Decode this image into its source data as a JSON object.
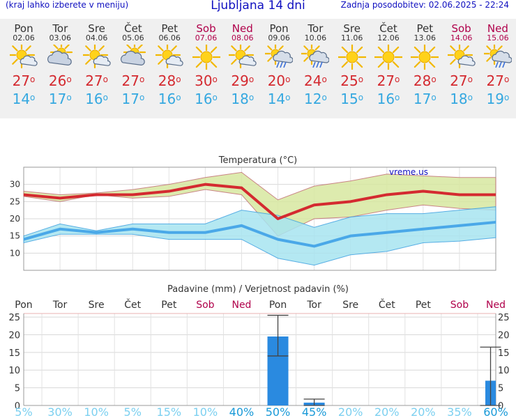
{
  "header": {
    "menu_hint": "(kraj lahko izberete v meniju)",
    "title": "Ljubljana 14 dni",
    "updated": "Zadnja posodobitev: 02.06.2025 - 22:24"
  },
  "days": [
    {
      "name": "Pon",
      "date": "02.06",
      "weekend": false,
      "icon": "sun-cloud-icon",
      "tmax": "27",
      "tmin": "14"
    },
    {
      "name": "Tor",
      "date": "03.06",
      "weekend": false,
      "icon": "cloudy-sun-icon",
      "tmax": "26",
      "tmin": "17"
    },
    {
      "name": "Sre",
      "date": "04.06",
      "weekend": false,
      "icon": "sun-cloud-icon",
      "tmax": "27",
      "tmin": "16"
    },
    {
      "name": "Čet",
      "date": "05.06",
      "weekend": false,
      "icon": "cloudy-sun-icon",
      "tmax": "27",
      "tmin": "17"
    },
    {
      "name": "Pet",
      "date": "06.06",
      "weekend": false,
      "icon": "sun-cloud-icon",
      "tmax": "28",
      "tmin": "16"
    },
    {
      "name": "Sob",
      "date": "07.06",
      "weekend": true,
      "icon": "sun-icon",
      "tmax": "30",
      "tmin": "16"
    },
    {
      "name": "Ned",
      "date": "08.06",
      "weekend": true,
      "icon": "sun-cloud-icon",
      "tmax": "29",
      "tmin": "18"
    },
    {
      "name": "Pon",
      "date": "09.06",
      "weekend": false,
      "icon": "sun-cloud-rain-icon",
      "tmax": "20",
      "tmin": "14"
    },
    {
      "name": "Tor",
      "date": "10.06",
      "weekend": false,
      "icon": "sun-cloud-rain-icon",
      "tmax": "24",
      "tmin": "12"
    },
    {
      "name": "Sre",
      "date": "11.06",
      "weekend": false,
      "icon": "sun-icon",
      "tmax": "25",
      "tmin": "15"
    },
    {
      "name": "Čet",
      "date": "12.06",
      "weekend": false,
      "icon": "sun-icon",
      "tmax": "27",
      "tmin": "16"
    },
    {
      "name": "Pet",
      "date": "13.06",
      "weekend": false,
      "icon": "sun-icon",
      "tmax": "28",
      "tmin": "17"
    },
    {
      "name": "Sob",
      "date": "14.06",
      "weekend": true,
      "icon": "sun-cloud-icon",
      "tmax": "27",
      "tmin": "18"
    },
    {
      "name": "Ned",
      "date": "15.06",
      "weekend": true,
      "icon": "sun-cloud-rain-icon",
      "tmax": "27",
      "tmin": "19"
    }
  ],
  "colors": {
    "weekend": "#b0004a",
    "tmax": "#d42a30",
    "tmin": "#35a8e0",
    "title": "#1010c0",
    "max_band": "#d8e8a0",
    "min_band": "#a8e4f0",
    "precip_bar": "#2a8ae0",
    "prob_low": "#7cd0f0",
    "prob_high": "#1a9ad8"
  },
  "chart_data": [
    {
      "type": "line",
      "title": "Temperatura (°C)",
      "ylim": [
        5,
        35
      ],
      "yticks": [
        "10",
        "15",
        "20",
        "25",
        "30"
      ],
      "watermark": "vreme.us",
      "x": [
        "02.06",
        "03.06",
        "04.06",
        "05.06",
        "06.06",
        "07.06",
        "08.06",
        "09.06",
        "10.06",
        "11.06",
        "12.06",
        "13.06",
        "14.06",
        "15.06"
      ],
      "series": [
        {
          "values": [
            27,
            26,
            27,
            27,
            28,
            30,
            29,
            20,
            24,
            25,
            27,
            28,
            27,
            27
          ]
        },
        {
          "values": [
            14,
            17,
            16,
            17,
            16,
            16,
            18,
            14,
            12,
            15,
            16,
            17,
            18,
            19
          ]
        }
      ],
      "max_range_upper": [
        28,
        27,
        27.5,
        28.5,
        30,
        32,
        33.5,
        25.5,
        29.5,
        31,
        33,
        32.5,
        32,
        32
      ],
      "max_range_lower": [
        26.5,
        25,
        27,
        26,
        26.5,
        28.5,
        27,
        15,
        20,
        20.5,
        22.5,
        24,
        23,
        22.5
      ],
      "min_range_upper": [
        15,
        18.5,
        16.5,
        18.5,
        18.5,
        18.5,
        22.5,
        21,
        17.5,
        20.5,
        21.5,
        21.5,
        22.5,
        23.5
      ],
      "min_range_lower": [
        13,
        15.5,
        15.5,
        15.5,
        14,
        14,
        14,
        8.5,
        6.5,
        9.5,
        10.5,
        13,
        13.5,
        14.5
      ],
      "grid": true
    },
    {
      "type": "bar",
      "title": "Padavine (mm) / Verjetnost padavin (%)",
      "ylim": [
        0,
        26
      ],
      "yticks": [
        "0",
        "5",
        "10",
        "15",
        "20",
        "25"
      ],
      "categories": [
        "Pon",
        "Tor",
        "Sre",
        "Čet",
        "Pet",
        "Sob",
        "Ned",
        "Pon",
        "Tor",
        "Sre",
        "Čet",
        "Pet",
        "Sob",
        "Ned"
      ],
      "weekend": [
        false,
        false,
        false,
        false,
        false,
        true,
        true,
        false,
        false,
        false,
        false,
        false,
        true,
        true
      ],
      "values": [
        0,
        0,
        0,
        0,
        0,
        0,
        0,
        19.5,
        0.8,
        0,
        0,
        0,
        0,
        7
      ],
      "err_low": [
        null,
        null,
        null,
        null,
        null,
        null,
        null,
        14,
        0,
        null,
        null,
        null,
        null,
        0
      ],
      "err_high": [
        null,
        null,
        null,
        null,
        null,
        null,
        null,
        25.5,
        1.8,
        null,
        null,
        null,
        null,
        16.5
      ],
      "probability": [
        "5%",
        "30%",
        "10%",
        "5%",
        "15%",
        "10%",
        "40%",
        "50%",
        "45%",
        "20%",
        "20%",
        "20%",
        "35%",
        "60%"
      ],
      "grid": true
    }
  ]
}
